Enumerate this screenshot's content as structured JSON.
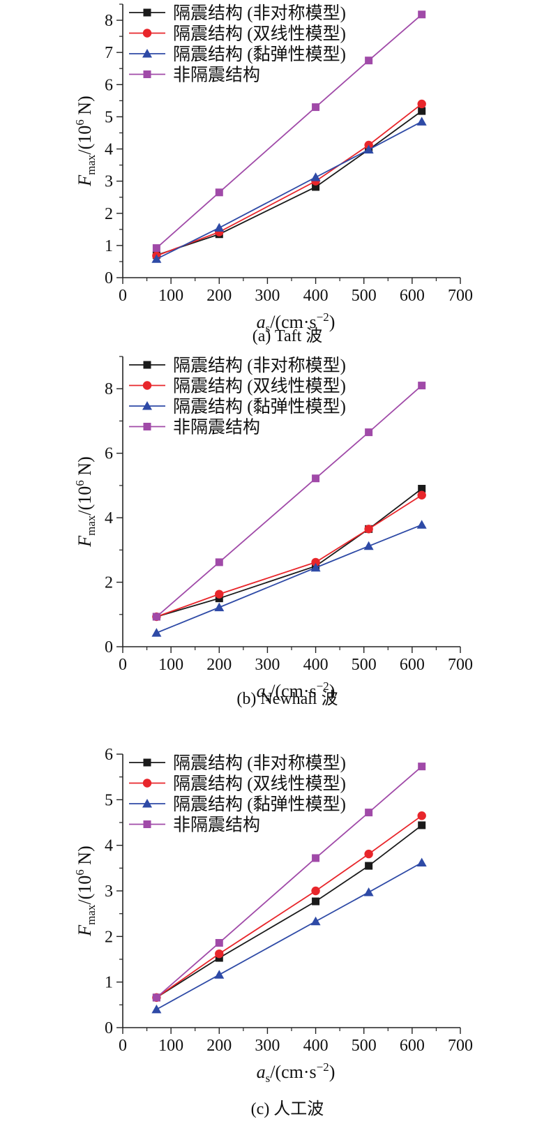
{
  "chart_data": [
    {
      "type": "line",
      "caption": "(a) Taft 波",
      "xlabel_main": "a",
      "xlabel_sub": "s",
      "xlabel_unit": "/(cm·s",
      "xlabel_exp": "−2",
      "xlabel_close": ")",
      "ylabel_main": "F",
      "ylabel_sub": "max",
      "ylabel_unit": "/(10",
      "ylabel_exp": "6",
      "ylabel_close": " N)",
      "xlim": [
        0,
        700
      ],
      "ylim": [
        0,
        8.5
      ],
      "xticks": [
        0,
        100,
        200,
        300,
        400,
        500,
        600,
        700
      ],
      "yticks": [
        0,
        1,
        2,
        3,
        4,
        5,
        6,
        7,
        8
      ],
      "x": [
        70,
        200,
        400,
        510,
        620
      ],
      "series": [
        {
          "name": "隔震结构 (非对称模型)",
          "color": "#1a1a1a",
          "marker": "square",
          "values": [
            0.7,
            1.35,
            2.82,
            3.98,
            5.18
          ]
        },
        {
          "name": "隔震结构 (双线性模型)",
          "color": "#e8262b",
          "marker": "circle",
          "values": [
            0.68,
            1.42,
            3.0,
            4.12,
            5.4
          ]
        },
        {
          "name": "隔震结构 (黏弹性模型)",
          "color": "#2e4aa6",
          "marker": "triangle",
          "values": [
            0.58,
            1.55,
            3.12,
            3.98,
            4.85
          ]
        },
        {
          "name": "非隔震结构",
          "color": "#a04aa8",
          "marker": "square",
          "values": [
            0.92,
            2.65,
            5.3,
            6.75,
            8.18
          ]
        }
      ]
    },
    {
      "type": "line",
      "caption": "(b) Newhall 波",
      "xlabel_main": "a",
      "xlabel_sub": "s",
      "xlabel_unit": "/(cm·s",
      "xlabel_exp": "−2",
      "xlabel_close": ")",
      "ylabel_main": "F",
      "ylabel_sub": "max",
      "ylabel_unit": "/(10",
      "ylabel_exp": "6",
      "ylabel_close": " N)",
      "xlim": [
        0,
        700
      ],
      "ylim": [
        0,
        9
      ],
      "xticks": [
        0,
        100,
        200,
        300,
        400,
        500,
        600,
        700
      ],
      "yticks": [
        0,
        2,
        4,
        6,
        8
      ],
      "x": [
        70,
        200,
        400,
        510,
        620
      ],
      "series": [
        {
          "name": "隔震结构 (非对称模型)",
          "color": "#1a1a1a",
          "marker": "square",
          "values": [
            0.93,
            1.5,
            2.5,
            3.65,
            4.9
          ]
        },
        {
          "name": "隔震结构 (双线性模型)",
          "color": "#e8262b",
          "marker": "circle",
          "values": [
            0.93,
            1.63,
            2.62,
            3.65,
            4.7
          ]
        },
        {
          "name": "隔震结构 (黏弹性模型)",
          "color": "#2e4aa6",
          "marker": "triangle",
          "values": [
            0.43,
            1.22,
            2.45,
            3.12,
            3.78
          ]
        },
        {
          "name": "非隔震结构",
          "color": "#a04aa8",
          "marker": "square",
          "values": [
            0.93,
            2.62,
            5.22,
            6.65,
            8.1
          ]
        }
      ]
    },
    {
      "type": "line",
      "caption": "(c) 人工波",
      "xlabel_main": "a",
      "xlabel_sub": "s",
      "xlabel_unit": "/(cm·s",
      "xlabel_exp": "−2",
      "xlabel_close": ")",
      "ylabel_main": "F",
      "ylabel_sub": "max",
      "ylabel_unit": "/(10",
      "ylabel_exp": "6",
      "ylabel_close": " N)",
      "xlim": [
        0,
        700
      ],
      "ylim": [
        0,
        6
      ],
      "xticks": [
        0,
        100,
        200,
        300,
        400,
        500,
        600,
        700
      ],
      "yticks": [
        0,
        1,
        2,
        3,
        4,
        5,
        6
      ],
      "x": [
        70,
        200,
        400,
        510,
        620
      ],
      "series": [
        {
          "name": "隔震结构 (非对称模型)",
          "color": "#1a1a1a",
          "marker": "square",
          "values": [
            0.66,
            1.53,
            2.77,
            3.55,
            4.44
          ]
        },
        {
          "name": "隔震结构 (双线性模型)",
          "color": "#e8262b",
          "marker": "circle",
          "values": [
            0.66,
            1.62,
            3.0,
            3.81,
            4.65
          ]
        },
        {
          "name": "隔震结构 (黏弹性模型)",
          "color": "#2e4aa6",
          "marker": "triangle",
          "values": [
            0.4,
            1.16,
            2.33,
            2.97,
            3.62
          ]
        },
        {
          "name": "非隔震结构",
          "color": "#a04aa8",
          "marker": "square",
          "values": [
            0.66,
            1.86,
            3.72,
            4.72,
            5.73
          ]
        }
      ]
    }
  ]
}
